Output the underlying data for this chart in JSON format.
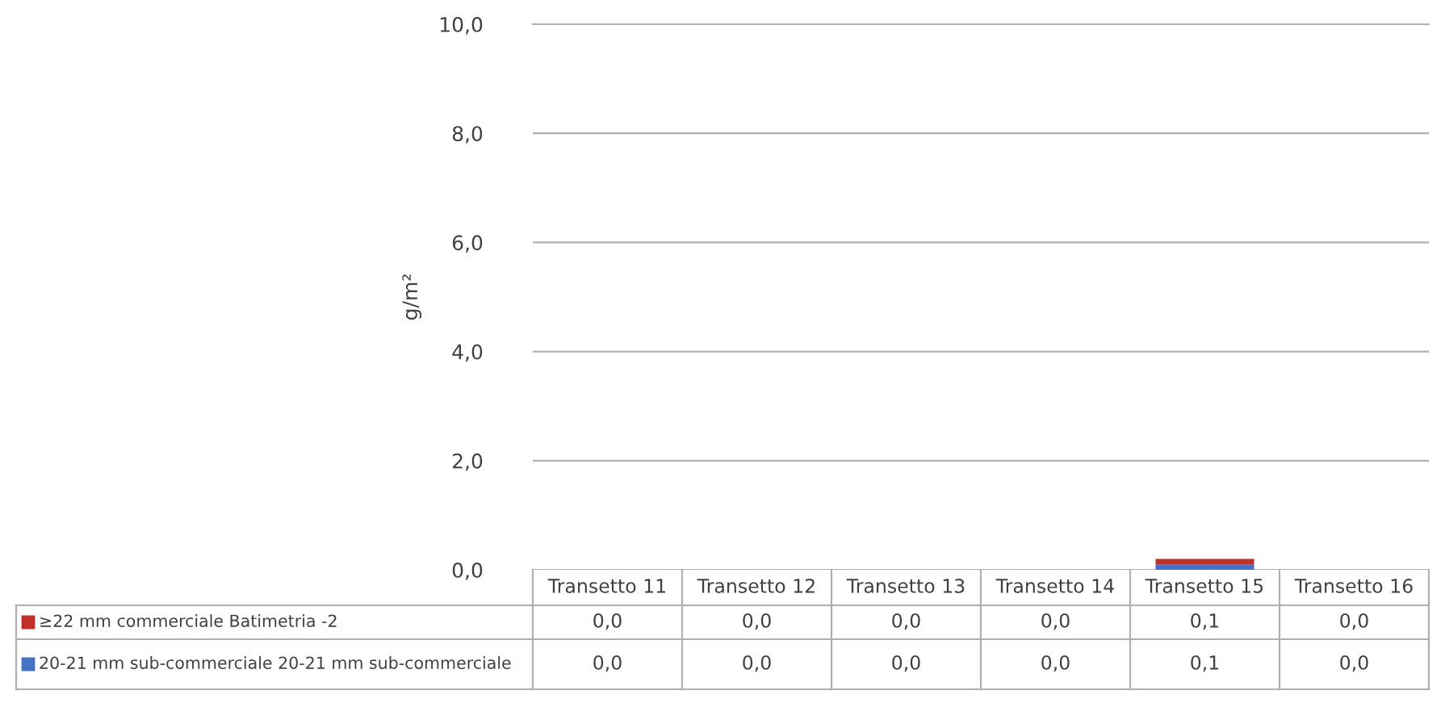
{
  "chart_data": {
    "type": "bar",
    "stacked": true,
    "ylabel": "g/m²",
    "categories": [
      "Transetto 11",
      "Transetto 12",
      "Transetto 13",
      "Transetto 14",
      "Transetto 15",
      "Transetto 16"
    ],
    "series": [
      {
        "name": "20-21 mm sub-commerciale 20-21 mm sub-commerciale",
        "color": "#4472c4",
        "values": [
          0.0,
          0.0,
          0.0,
          0.0,
          0.1,
          0.0
        ],
        "value_labels": [
          "0,0",
          "0,0",
          "0,0",
          "0,0",
          "0,1",
          "0,0"
        ]
      },
      {
        "name": "≥22 mm commerciale Batimetria -2",
        "color": "#c0302b",
        "values": [
          0.0,
          0.0,
          0.0,
          0.0,
          0.1,
          0.0
        ],
        "value_labels": [
          "0,0",
          "0,0",
          "0,0",
          "0,0",
          "0,1",
          "0,0"
        ]
      }
    ],
    "ylim": [
      0,
      10
    ],
    "yticks": [
      {
        "value": 0,
        "label": "0,0"
      },
      {
        "value": 2,
        "label": "2,0"
      },
      {
        "value": 4,
        "label": "4,0"
      },
      {
        "value": 6,
        "label": "6,0"
      },
      {
        "value": 8,
        "label": "8,0"
      },
      {
        "value": 10,
        "label": "10,0"
      }
    ],
    "grid": "y",
    "legend": "bottom left"
  }
}
